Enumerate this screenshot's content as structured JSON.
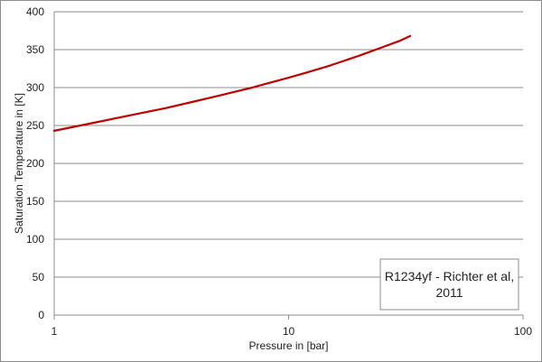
{
  "chart_data": {
    "type": "line",
    "title": "",
    "xlabel": "Pressure in [bar]",
    "ylabel": "Saturation Temperature in [K]",
    "xscale": "log",
    "xlim": [
      1,
      100
    ],
    "ylim": [
      0,
      400
    ],
    "xticks": [
      1,
      10,
      100
    ],
    "xtick_labels": [
      "1",
      "10",
      "100"
    ],
    "yticks": [
      0,
      50,
      100,
      150,
      200,
      250,
      300,
      350,
      400
    ],
    "ytick_labels": [
      "0",
      "50",
      "100",
      "150",
      "200",
      "250",
      "300",
      "350",
      "400"
    ],
    "grid": "horizontal major gridlines",
    "legend_position": "lower-right",
    "series": [
      {
        "name": "R1234yf - Richter et al, 2011",
        "color": "#c00000",
        "x": [
          1.0,
          1.5,
          2.0,
          3.0,
          4.0,
          5.0,
          6.0,
          7.0,
          8.0,
          10.0,
          12.0,
          15.0,
          20.0,
          25.0,
          30.0,
          33.0
        ],
        "y": [
          243,
          254,
          262,
          273,
          282,
          289,
          295,
          300,
          305,
          313,
          320,
          329,
          342,
          353,
          362,
          368
        ]
      }
    ],
    "legend_text": [
      "R1234yf - Richter et al,",
      "2011"
    ]
  }
}
